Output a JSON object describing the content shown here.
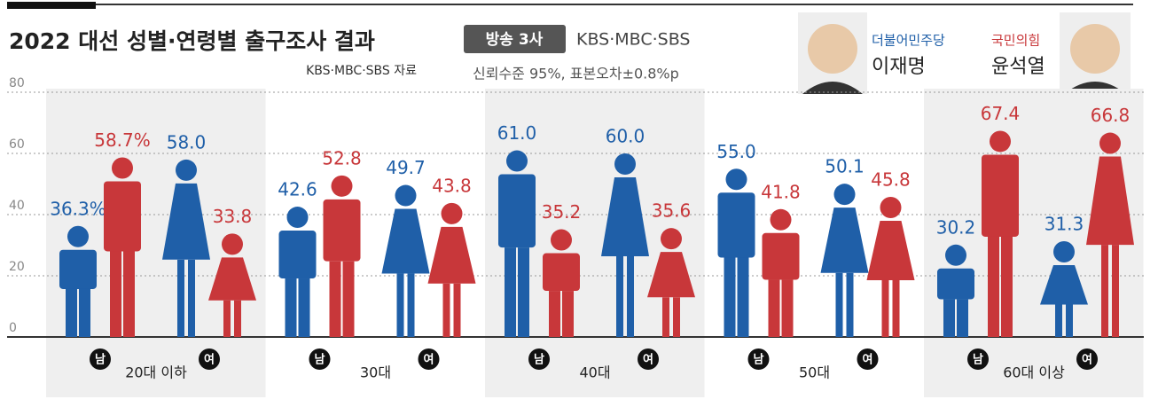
{
  "chart_data": {
    "type": "pictogram",
    "title": "2022 대선 성별·연령별 출구조사 결과",
    "source": "KBS·MBC·SBS 자료",
    "badge": "방송 3사",
    "broadcasters": "KBS·MBC·SBS",
    "note": "신뢰수준 95%, 표본오차±0.8%p",
    "categories": [
      "20대 이하",
      "30대",
      "40대",
      "50대",
      "60대 이상"
    ],
    "genders": [
      "남",
      "여"
    ],
    "series": [
      {
        "name": "이재명",
        "party": "더불어민주당",
        "color": "#1f5fa8",
        "values": [
          [
            36.3,
            58.0
          ],
          [
            42.6,
            49.7
          ],
          [
            61.0,
            60.0
          ],
          [
            55.0,
            50.1
          ],
          [
            30.2,
            31.3
          ]
        ],
        "value_labels": [
          [
            "36.3%",
            "58.0"
          ],
          [
            "42.6",
            "49.7"
          ],
          [
            "61.0",
            "60.0"
          ],
          [
            "55.0",
            "50.1"
          ],
          [
            "30.2",
            "31.3"
          ]
        ]
      },
      {
        "name": "윤석열",
        "party": "국민의힘",
        "color": "#c8373a",
        "values": [
          [
            58.7,
            33.8
          ],
          [
            52.8,
            43.8
          ],
          [
            35.2,
            35.6
          ],
          [
            41.8,
            45.8
          ],
          [
            67.4,
            66.8
          ]
        ],
        "value_labels": [
          [
            "58.7%",
            "33.8"
          ],
          [
            "52.8",
            "43.8"
          ],
          [
            "35.2",
            "35.6"
          ],
          [
            "41.8",
            "45.8"
          ],
          [
            "67.4",
            "66.8"
          ]
        ]
      }
    ],
    "ylim": [
      0,
      80
    ],
    "yticks": [
      0,
      20,
      40,
      60,
      80
    ],
    "grid": true
  }
}
